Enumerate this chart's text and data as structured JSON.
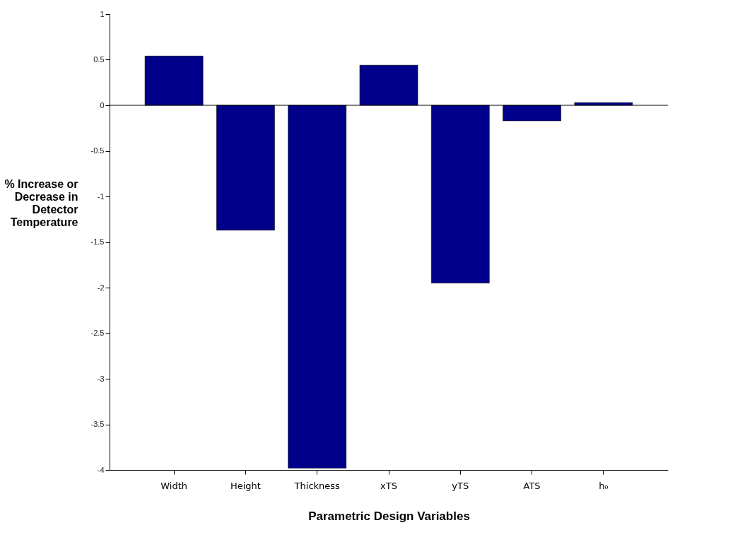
{
  "chart_data": {
    "type": "bar",
    "xlabel": "Parametric Design Variables",
    "ylabel": "% Increase or\nDecrease in\nDetector\nTemperature",
    "categories": [
      "Width",
      "Height",
      "Thickness",
      "xTS",
      "yTS",
      "ATS",
      "h₀"
    ],
    "values": [
      0.54,
      -1.37,
      -3.98,
      0.44,
      -1.95,
      -0.17,
      0.03
    ],
    "color": "#00008b",
    "ylim": [
      -4,
      1
    ],
    "yticks": [
      -4,
      -3.5,
      -3,
      -2.5,
      -2,
      -1.5,
      -1,
      -0.5,
      0,
      0.5,
      1
    ],
    "ref_lines": [
      {
        "axis": "y",
        "value": 0,
        "color": "#000000"
      }
    ],
    "grid": false
  }
}
